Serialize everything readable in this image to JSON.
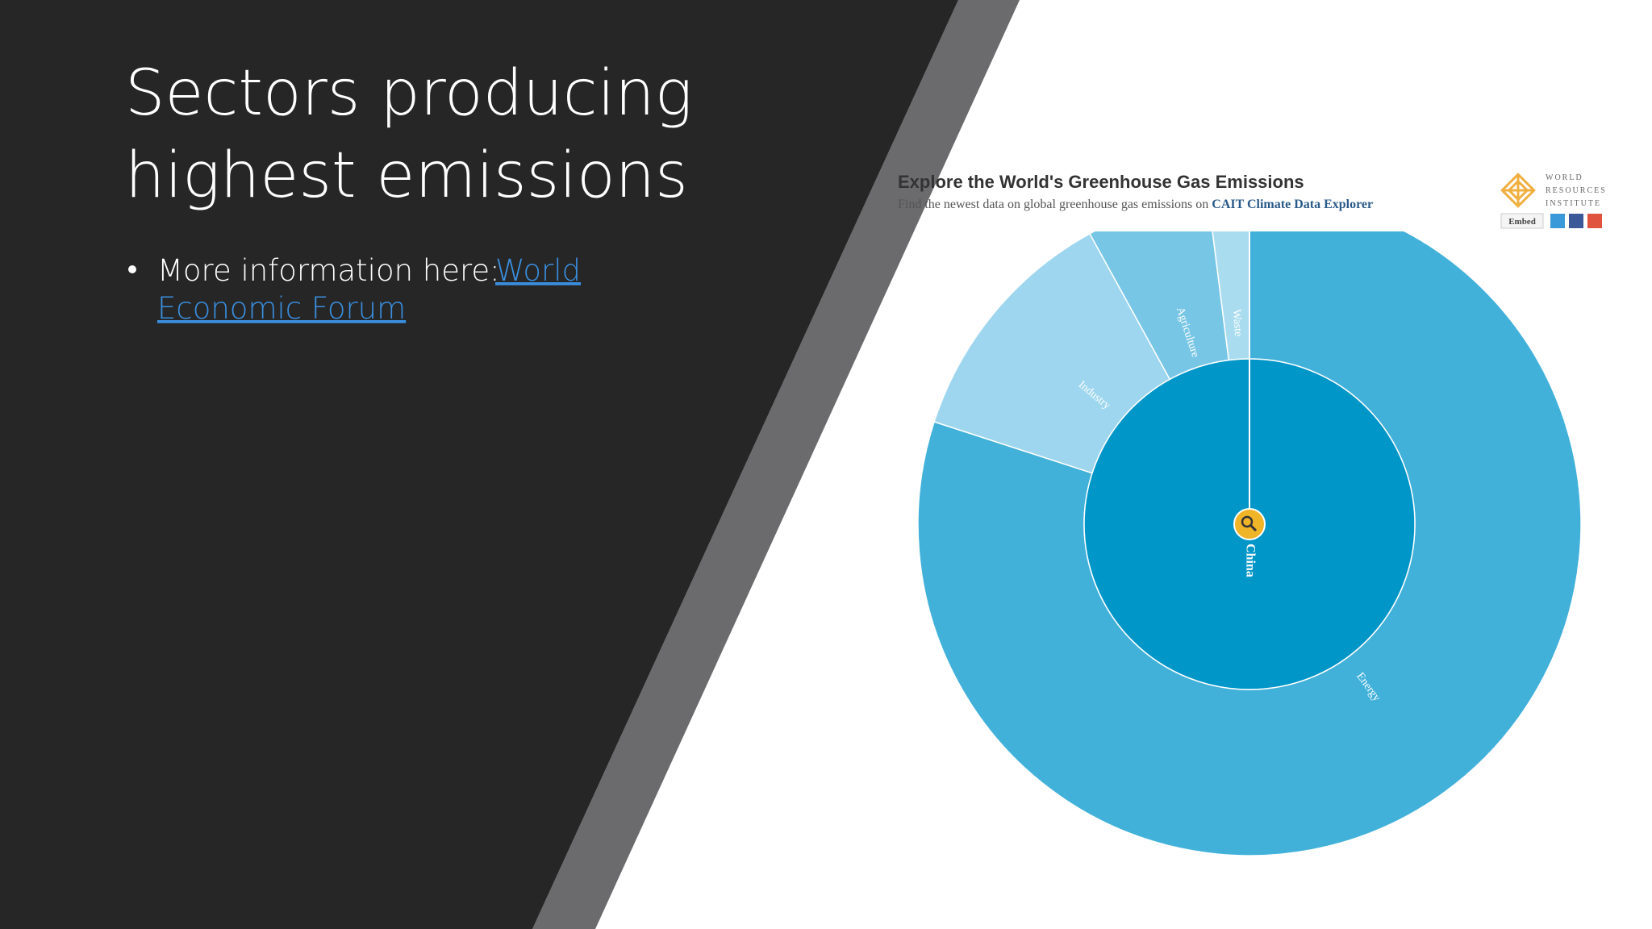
{
  "slide": {
    "title_lines": [
      "Sectors producing",
      "highest emissions"
    ],
    "bullet_text": "More information here:",
    "link_lines": [
      "World",
      "Economic Forum"
    ]
  },
  "chart_data": {
    "type": "sunburst",
    "title": "Explore the World's Greenhouse Gas Emissions",
    "subtitle": "Find the newest data on global greenhouse gas emissions on",
    "subtitle_link": "CAIT Climate Data Explorer",
    "center_label": "China",
    "center_color": "#0096c8",
    "categories": [
      "Energy",
      "Industry",
      "Agriculture",
      "Waste"
    ],
    "values": [
      80,
      12,
      6,
      2
    ],
    "colors": [
      "#41b1da",
      "#9dd6ee",
      "#78c6e6",
      "#aadcf0"
    ],
    "logo_lines": [
      "WORLD",
      "RESOURCES",
      "INSTITUTE"
    ],
    "embed": "Embed"
  }
}
